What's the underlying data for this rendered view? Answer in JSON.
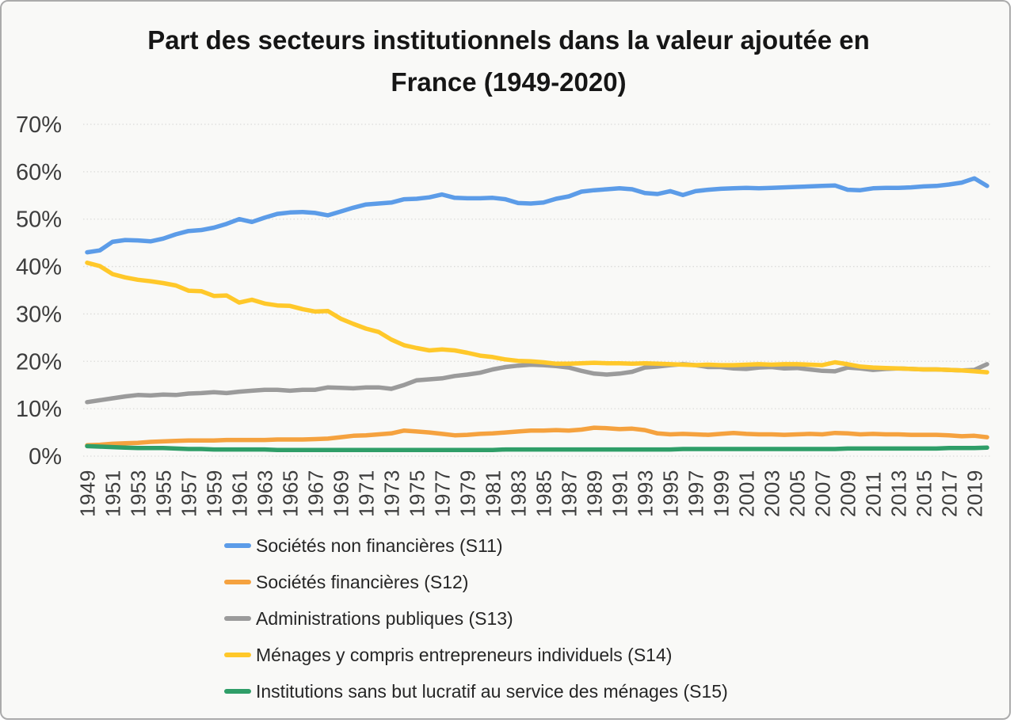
{
  "chart_data": {
    "type": "line",
    "title": "Part des secteurs institutionnels dans la valeur ajoutée en France (1949-2020)",
    "x_start": 1949,
    "x_end": 2020,
    "x_tick_labels": [
      "1949",
      "1951",
      "1953",
      "1955",
      "1957",
      "1959",
      "1961",
      "1963",
      "1965",
      "1967",
      "1969",
      "1971",
      "1973",
      "1975",
      "1977",
      "1979",
      "1981",
      "1983",
      "1985",
      "1987",
      "1989",
      "1991",
      "1993",
      "1995",
      "1997",
      "1999",
      "2001",
      "2003",
      "2005",
      "2007",
      "2009",
      "2011",
      "2013",
      "2015",
      "2017",
      "2019"
    ],
    "y_ticks": [
      0,
      10,
      20,
      30,
      40,
      50,
      60,
      70
    ],
    "y_tick_suffix": "%",
    "ylim": [
      0,
      70
    ],
    "grid": "horizontal-dotted",
    "grid_color": "#dcdcda",
    "axis_text_color": "#3d3d3d",
    "legend_position": "bottom-left",
    "series": [
      {
        "id": "s11",
        "name": "Sociétés non financières (S11)",
        "color": "#5c9ce8",
        "values": [
          43.0,
          43.4,
          45.2,
          45.6,
          45.5,
          45.3,
          45.9,
          46.8,
          47.5,
          47.7,
          48.2,
          49.0,
          50.0,
          49.4,
          50.3,
          51.1,
          51.4,
          51.5,
          51.3,
          50.8,
          51.6,
          52.4,
          53.1,
          53.3,
          53.5,
          54.2,
          54.3,
          54.6,
          55.2,
          54.5,
          54.4,
          54.4,
          54.5,
          54.2,
          53.4,
          53.3,
          53.5,
          54.3,
          54.8,
          55.8,
          56.1,
          56.3,
          56.5,
          56.3,
          55.5,
          55.3,
          55.9,
          55.1,
          55.9,
          56.2,
          56.4,
          56.5,
          56.6,
          56.5,
          56.6,
          56.7,
          56.8,
          56.9,
          57.0,
          57.1,
          56.2,
          56.1,
          56.5,
          56.6,
          56.6,
          56.7,
          56.9,
          57.0,
          57.3,
          57.7,
          58.6,
          57.0
        ]
      },
      {
        "id": "s12",
        "name": "Sociétés financières (S12)",
        "color": "#f5a23f",
        "values": [
          2.3,
          2.4,
          2.6,
          2.7,
          2.8,
          3.0,
          3.1,
          3.2,
          3.3,
          3.3,
          3.3,
          3.4,
          3.4,
          3.4,
          3.4,
          3.5,
          3.5,
          3.5,
          3.6,
          3.7,
          4.0,
          4.3,
          4.4,
          4.6,
          4.8,
          5.4,
          5.2,
          5.0,
          4.7,
          4.4,
          4.5,
          4.7,
          4.8,
          5.0,
          5.2,
          5.4,
          5.4,
          5.5,
          5.4,
          5.6,
          6.0,
          5.9,
          5.7,
          5.8,
          5.5,
          4.8,
          4.6,
          4.7,
          4.6,
          4.5,
          4.7,
          4.9,
          4.7,
          4.6,
          4.6,
          4.5,
          4.6,
          4.7,
          4.6,
          4.9,
          4.8,
          4.6,
          4.7,
          4.6,
          4.6,
          4.5,
          4.5,
          4.5,
          4.4,
          4.2,
          4.3,
          4.0
        ]
      },
      {
        "id": "s13",
        "name": "Administrations publiques (S13)",
        "color": "#9b9b9b",
        "values": [
          11.4,
          11.8,
          12.2,
          12.6,
          12.9,
          12.8,
          13.0,
          12.9,
          13.2,
          13.3,
          13.5,
          13.3,
          13.6,
          13.8,
          14.0,
          14.0,
          13.8,
          14.0,
          14.0,
          14.5,
          14.4,
          14.3,
          14.5,
          14.5,
          14.2,
          15.0,
          16.0,
          16.2,
          16.4,
          16.9,
          17.2,
          17.6,
          18.3,
          18.8,
          19.1,
          19.3,
          19.2,
          19.0,
          18.7,
          18.0,
          17.4,
          17.2,
          17.4,
          17.8,
          18.7,
          18.9,
          19.2,
          19.4,
          19.2,
          18.8,
          18.8,
          18.5,
          18.4,
          18.7,
          18.8,
          18.5,
          18.6,
          18.3,
          18.0,
          17.9,
          18.7,
          18.5,
          18.2,
          18.4,
          18.5,
          18.4,
          18.3,
          18.3,
          18.2,
          18.1,
          18.2,
          19.4
        ]
      },
      {
        "id": "s14",
        "name": "Ménages y compris entrepreneurs individuels (S14)",
        "color": "#ffc82a",
        "values": [
          40.8,
          40.1,
          38.4,
          37.7,
          37.2,
          36.9,
          36.5,
          36.0,
          34.9,
          34.8,
          33.8,
          33.9,
          32.4,
          33.0,
          32.2,
          31.8,
          31.7,
          31.0,
          30.5,
          30.6,
          29.0,
          27.9,
          26.9,
          26.2,
          24.6,
          23.4,
          22.8,
          22.3,
          22.5,
          22.3,
          21.8,
          21.2,
          20.9,
          20.4,
          20.1,
          20.0,
          19.8,
          19.5,
          19.5,
          19.6,
          19.7,
          19.6,
          19.6,
          19.5,
          19.6,
          19.5,
          19.4,
          19.3,
          19.2,
          19.3,
          19.2,
          19.2,
          19.3,
          19.4,
          19.3,
          19.4,
          19.4,
          19.3,
          19.2,
          19.8,
          19.4,
          18.9,
          18.7,
          18.6,
          18.5,
          18.4,
          18.3,
          18.3,
          18.2,
          18.1,
          17.9,
          17.7
        ]
      },
      {
        "id": "s15",
        "name": "Institutions sans but lucratif au service des ménages (S15)",
        "color": "#2f9e68",
        "values": [
          2.1,
          2.0,
          1.9,
          1.8,
          1.7,
          1.7,
          1.7,
          1.6,
          1.5,
          1.5,
          1.4,
          1.4,
          1.4,
          1.4,
          1.4,
          1.3,
          1.3,
          1.3,
          1.3,
          1.3,
          1.3,
          1.3,
          1.3,
          1.3,
          1.3,
          1.3,
          1.3,
          1.3,
          1.3,
          1.3,
          1.3,
          1.3,
          1.3,
          1.4,
          1.4,
          1.4,
          1.4,
          1.4,
          1.4,
          1.4,
          1.4,
          1.4,
          1.4,
          1.4,
          1.4,
          1.4,
          1.4,
          1.5,
          1.5,
          1.5,
          1.5,
          1.5,
          1.5,
          1.5,
          1.5,
          1.5,
          1.5,
          1.5,
          1.5,
          1.5,
          1.6,
          1.6,
          1.6,
          1.6,
          1.6,
          1.6,
          1.6,
          1.6,
          1.7,
          1.7,
          1.7,
          1.8
        ]
      }
    ]
  }
}
